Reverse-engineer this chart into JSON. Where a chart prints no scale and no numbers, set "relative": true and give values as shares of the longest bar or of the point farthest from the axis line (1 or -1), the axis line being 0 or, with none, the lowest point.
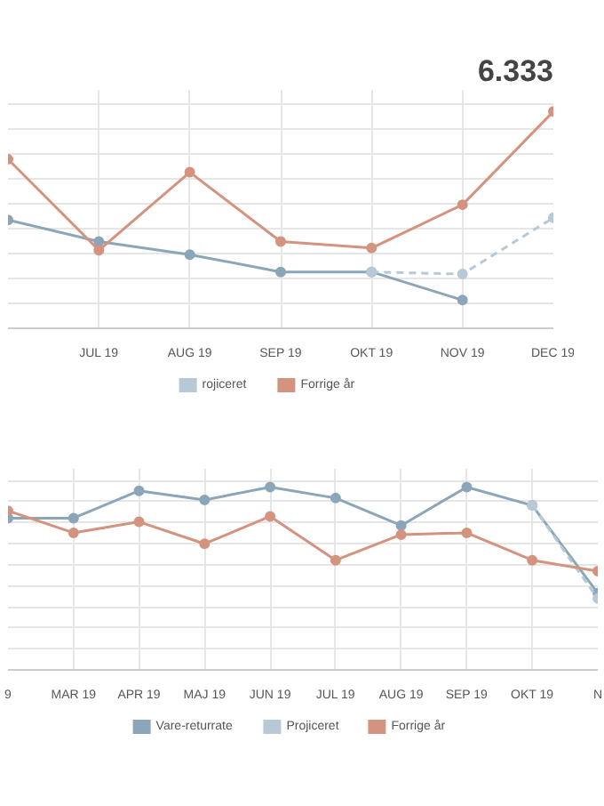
{
  "chart_data": [
    {
      "type": "line",
      "title": "6.333",
      "relative": true,
      "grid": true,
      "legend": "bottom",
      "marker": "circle",
      "categories": [
        null,
        "JUL 19",
        "AUG 19",
        "SEP 19",
        "OKT 19",
        "NOV 19",
        "DEC 19"
      ],
      "series": [
        {
          "color": "#8aa6b8",
          "values": [
            0.5,
            0.4,
            0.34,
            0.26,
            0.26,
            0.13,
            null
          ]
        },
        {
          "name": "rojiceret",
          "color": "#b7c9d6",
          "line_style": "dashed",
          "values": [
            null,
            null,
            null,
            null,
            0.26,
            0.25,
            0.51
          ]
        },
        {
          "name": "Forrige år",
          "color": "#d4937f",
          "values": [
            0.78,
            0.36,
            0.72,
            0.4,
            0.37,
            0.57,
            1.0
          ]
        }
      ]
    },
    {
      "type": "line",
      "relative": true,
      "grid": true,
      "legend": "bottom",
      "marker": "circle",
      "categories": [
        "9",
        "MAR 19",
        "APR 19",
        "MAJ 19",
        "JUN 19",
        "JUL 19",
        "AUG 19",
        "SEP 19",
        "OKT 19",
        "N"
      ],
      "series": [
        {
          "name": "Vare-returrate",
          "color": "#8aa6b8",
          "values": [
            0.83,
            0.83,
            0.98,
            0.93,
            1.0,
            0.94,
            0.79,
            1.0,
            0.9,
            0.42
          ]
        },
        {
          "name": "Projiceret",
          "color": "#b7c9d6",
          "line_style": "dashed",
          "values": [
            null,
            null,
            null,
            null,
            null,
            null,
            null,
            null,
            0.9,
            0.39
          ]
        },
        {
          "name": "Forrige år",
          "color": "#d4937f",
          "values": [
            0.87,
            0.75,
            0.81,
            0.69,
            0.84,
            0.6,
            0.74,
            0.75,
            0.6,
            0.54
          ]
        }
      ]
    }
  ]
}
